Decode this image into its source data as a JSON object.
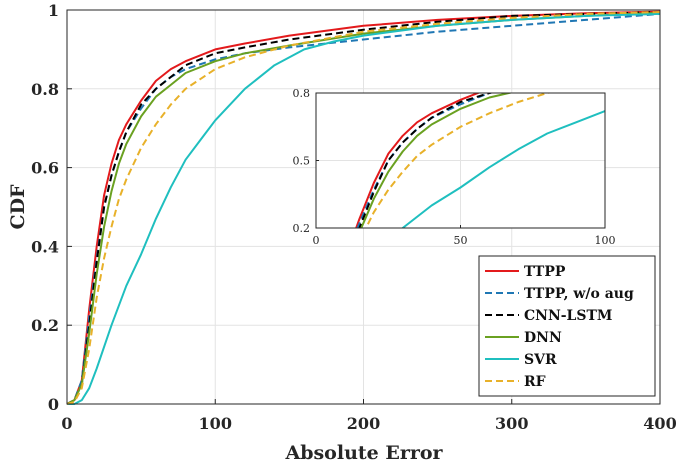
{
  "chart_data": {
    "type": "line",
    "xlabel": "Absolute Error",
    "ylabel": "CDF",
    "xlim": [
      0,
      400
    ],
    "ylim": [
      0,
      1
    ],
    "xticks": [
      "0",
      "100",
      "200",
      "300",
      "400"
    ],
    "yticks": [
      "0",
      "0.2",
      "0.4",
      "0.6",
      "0.8",
      "1"
    ],
    "grid": true,
    "legend_position": "bottom-right",
    "series": [
      {
        "name": "TTPP",
        "color": "#e31a1c",
        "dash": "solid",
        "points": [
          [
            0,
            0
          ],
          [
            5,
            0.01
          ],
          [
            10,
            0.06
          ],
          [
            15,
            0.24
          ],
          [
            20,
            0.4
          ],
          [
            25,
            0.53
          ],
          [
            30,
            0.61
          ],
          [
            35,
            0.67
          ],
          [
            40,
            0.71
          ],
          [
            50,
            0.77
          ],
          [
            60,
            0.82
          ],
          [
            70,
            0.85
          ],
          [
            80,
            0.87
          ],
          [
            100,
            0.9
          ],
          [
            120,
            0.915
          ],
          [
            150,
            0.935
          ],
          [
            200,
            0.96
          ],
          [
            250,
            0.975
          ],
          [
            300,
            0.985
          ],
          [
            350,
            0.992
          ],
          [
            400,
            0.996
          ]
        ]
      },
      {
        "name": "TTPP, w/o aug",
        "color": "#1f77b4",
        "dash": "dashed",
        "points": [
          [
            0,
            0
          ],
          [
            5,
            0.01
          ],
          [
            10,
            0.06
          ],
          [
            15,
            0.22
          ],
          [
            20,
            0.37
          ],
          [
            25,
            0.5
          ],
          [
            30,
            0.58
          ],
          [
            35,
            0.64
          ],
          [
            40,
            0.69
          ],
          [
            50,
            0.75
          ],
          [
            60,
            0.8
          ],
          [
            70,
            0.83
          ],
          [
            80,
            0.85
          ],
          [
            100,
            0.875
          ],
          [
            120,
            0.89
          ],
          [
            150,
            0.905
          ],
          [
            200,
            0.925
          ],
          [
            250,
            0.945
          ],
          [
            300,
            0.96
          ],
          [
            350,
            0.975
          ],
          [
            400,
            0.99
          ]
        ]
      },
      {
        "name": "CNN-LSTM",
        "color": "#000000",
        "dash": "dashed",
        "points": [
          [
            0,
            0
          ],
          [
            5,
            0.01
          ],
          [
            10,
            0.05
          ],
          [
            15,
            0.2
          ],
          [
            20,
            0.36
          ],
          [
            25,
            0.5
          ],
          [
            30,
            0.58
          ],
          [
            35,
            0.64
          ],
          [
            40,
            0.69
          ],
          [
            50,
            0.76
          ],
          [
            60,
            0.8
          ],
          [
            70,
            0.83
          ],
          [
            80,
            0.86
          ],
          [
            100,
            0.89
          ],
          [
            120,
            0.905
          ],
          [
            150,
            0.925
          ],
          [
            200,
            0.95
          ],
          [
            250,
            0.97
          ],
          [
            300,
            0.985
          ],
          [
            350,
            0.99
          ],
          [
            400,
            0.995
          ]
        ]
      },
      {
        "name": "DNN",
        "color": "#6aa121",
        "dash": "solid",
        "points": [
          [
            0,
            0
          ],
          [
            5,
            0.01
          ],
          [
            10,
            0.05
          ],
          [
            15,
            0.18
          ],
          [
            20,
            0.33
          ],
          [
            25,
            0.45
          ],
          [
            30,
            0.54
          ],
          [
            35,
            0.61
          ],
          [
            40,
            0.66
          ],
          [
            50,
            0.73
          ],
          [
            60,
            0.78
          ],
          [
            70,
            0.81
          ],
          [
            80,
            0.84
          ],
          [
            100,
            0.87
          ],
          [
            120,
            0.89
          ],
          [
            150,
            0.91
          ],
          [
            200,
            0.94
          ],
          [
            250,
            0.96
          ],
          [
            300,
            0.975
          ],
          [
            350,
            0.985
          ],
          [
            400,
            0.993
          ]
        ]
      },
      {
        "name": "SVR",
        "color": "#1fbfbf",
        "dash": "solid",
        "points": [
          [
            0,
            0
          ],
          [
            5,
            0
          ],
          [
            10,
            0.01
          ],
          [
            15,
            0.04
          ],
          [
            20,
            0.09
          ],
          [
            30,
            0.2
          ],
          [
            40,
            0.3
          ],
          [
            50,
            0.38
          ],
          [
            60,
            0.47
          ],
          [
            70,
            0.55
          ],
          [
            80,
            0.62
          ],
          [
            90,
            0.67
          ],
          [
            100,
            0.72
          ],
          [
            120,
            0.8
          ],
          [
            140,
            0.86
          ],
          [
            160,
            0.9
          ],
          [
            180,
            0.92
          ],
          [
            200,
            0.935
          ],
          [
            250,
            0.96
          ],
          [
            300,
            0.975
          ],
          [
            350,
            0.985
          ],
          [
            400,
            0.99
          ]
        ]
      },
      {
        "name": "RF",
        "color": "#e8b12a",
        "dash": "dashed",
        "points": [
          [
            0,
            0
          ],
          [
            5,
            0.005
          ],
          [
            10,
            0.04
          ],
          [
            15,
            0.14
          ],
          [
            20,
            0.27
          ],
          [
            25,
            0.37
          ],
          [
            30,
            0.45
          ],
          [
            35,
            0.52
          ],
          [
            40,
            0.57
          ],
          [
            50,
            0.65
          ],
          [
            60,
            0.71
          ],
          [
            70,
            0.76
          ],
          [
            80,
            0.8
          ],
          [
            100,
            0.85
          ],
          [
            120,
            0.88
          ],
          [
            150,
            0.91
          ],
          [
            200,
            0.945
          ],
          [
            250,
            0.965
          ],
          [
            300,
            0.98
          ],
          [
            350,
            0.99
          ],
          [
            400,
            0.995
          ]
        ]
      }
    ],
    "inset": {
      "xlim": [
        0,
        100
      ],
      "ylim": [
        0.2,
        0.8
      ],
      "xticks": [
        "0",
        "50",
        "100"
      ],
      "yticks": [
        "0.2",
        "0.5",
        "0.8"
      ],
      "grid": true
    }
  }
}
